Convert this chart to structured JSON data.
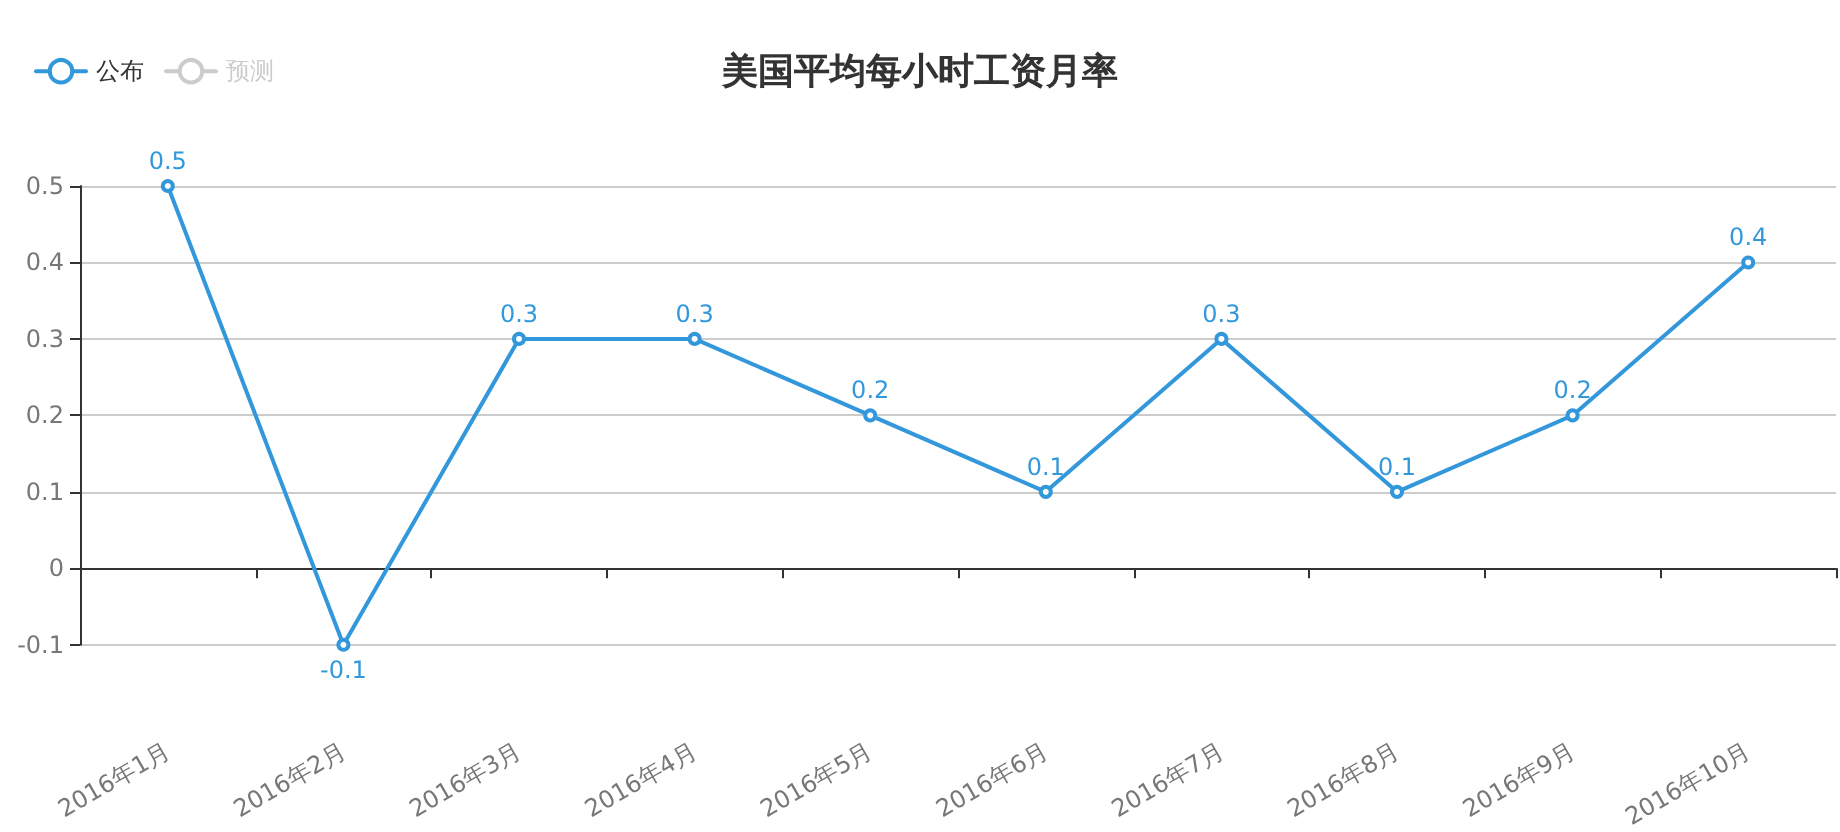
{
  "chart_data": {
    "type": "line",
    "title": "美国平均每小时工资月率",
    "categories": [
      "2016年1月",
      "2016年2月",
      "2016年3月",
      "2016年4月",
      "2016年5月",
      "2016年6月",
      "2016年7月",
      "2016年8月",
      "2016年9月",
      "2016年10月"
    ],
    "series": [
      {
        "name": "公布",
        "color": "#3398db",
        "values": [
          0.5,
          -0.1,
          0.3,
          0.3,
          0.2,
          0.1,
          0.3,
          0.1,
          0.2,
          0.4
        ]
      },
      {
        "name": "预测",
        "color": "#cccccc",
        "values": [
          null,
          null,
          null,
          null,
          null,
          null,
          null,
          null,
          null,
          null
        ]
      }
    ],
    "ylim": [
      -0.1,
      0.5
    ],
    "yticks": [
      -0.1,
      0,
      0.1,
      0.2,
      0.3,
      0.4,
      0.5
    ],
    "grid": "y",
    "legend": "top left",
    "marker": "circle",
    "line_style": "solid",
    "data_labels": true
  }
}
